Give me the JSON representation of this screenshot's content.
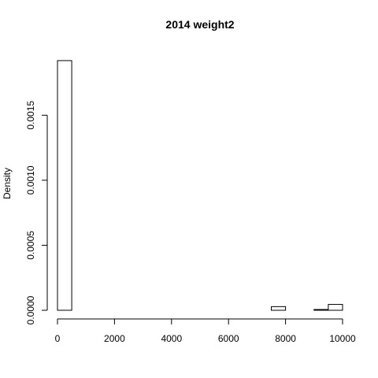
{
  "chart_data": {
    "type": "bar",
    "title": "2014 weight2",
    "xlabel": "",
    "ylabel": "Density",
    "xlim": [
      0,
      10000
    ],
    "ylim": [
      0,
      0.00195
    ],
    "x_ticks": [
      0,
      2000,
      4000,
      6000,
      8000,
      10000
    ],
    "x_tick_labels": [
      "0",
      "2000",
      "4000",
      "6000",
      "8000",
      "10000"
    ],
    "y_ticks": [
      0,
      0.0005,
      0.001,
      0.0015
    ],
    "y_tick_labels": [
      "0.0000",
      "0.0005",
      "0.0010",
      "0.0015"
    ],
    "bin_edges": [
      0,
      500,
      1000,
      1500,
      2000,
      2500,
      3000,
      3500,
      4000,
      4500,
      5000,
      5500,
      6000,
      6500,
      7000,
      7500,
      8000,
      8500,
      9000,
      9500,
      10000
    ],
    "values": [
      0.00192,
      0,
      0,
      0,
      0,
      0,
      0,
      0,
      0,
      0,
      0,
      0,
      0,
      0,
      0,
      2.8e-05,
      0,
      0,
      6e-06,
      4.5e-05
    ],
    "grid": false,
    "fill": "#ffffff",
    "stroke": "#000000"
  }
}
